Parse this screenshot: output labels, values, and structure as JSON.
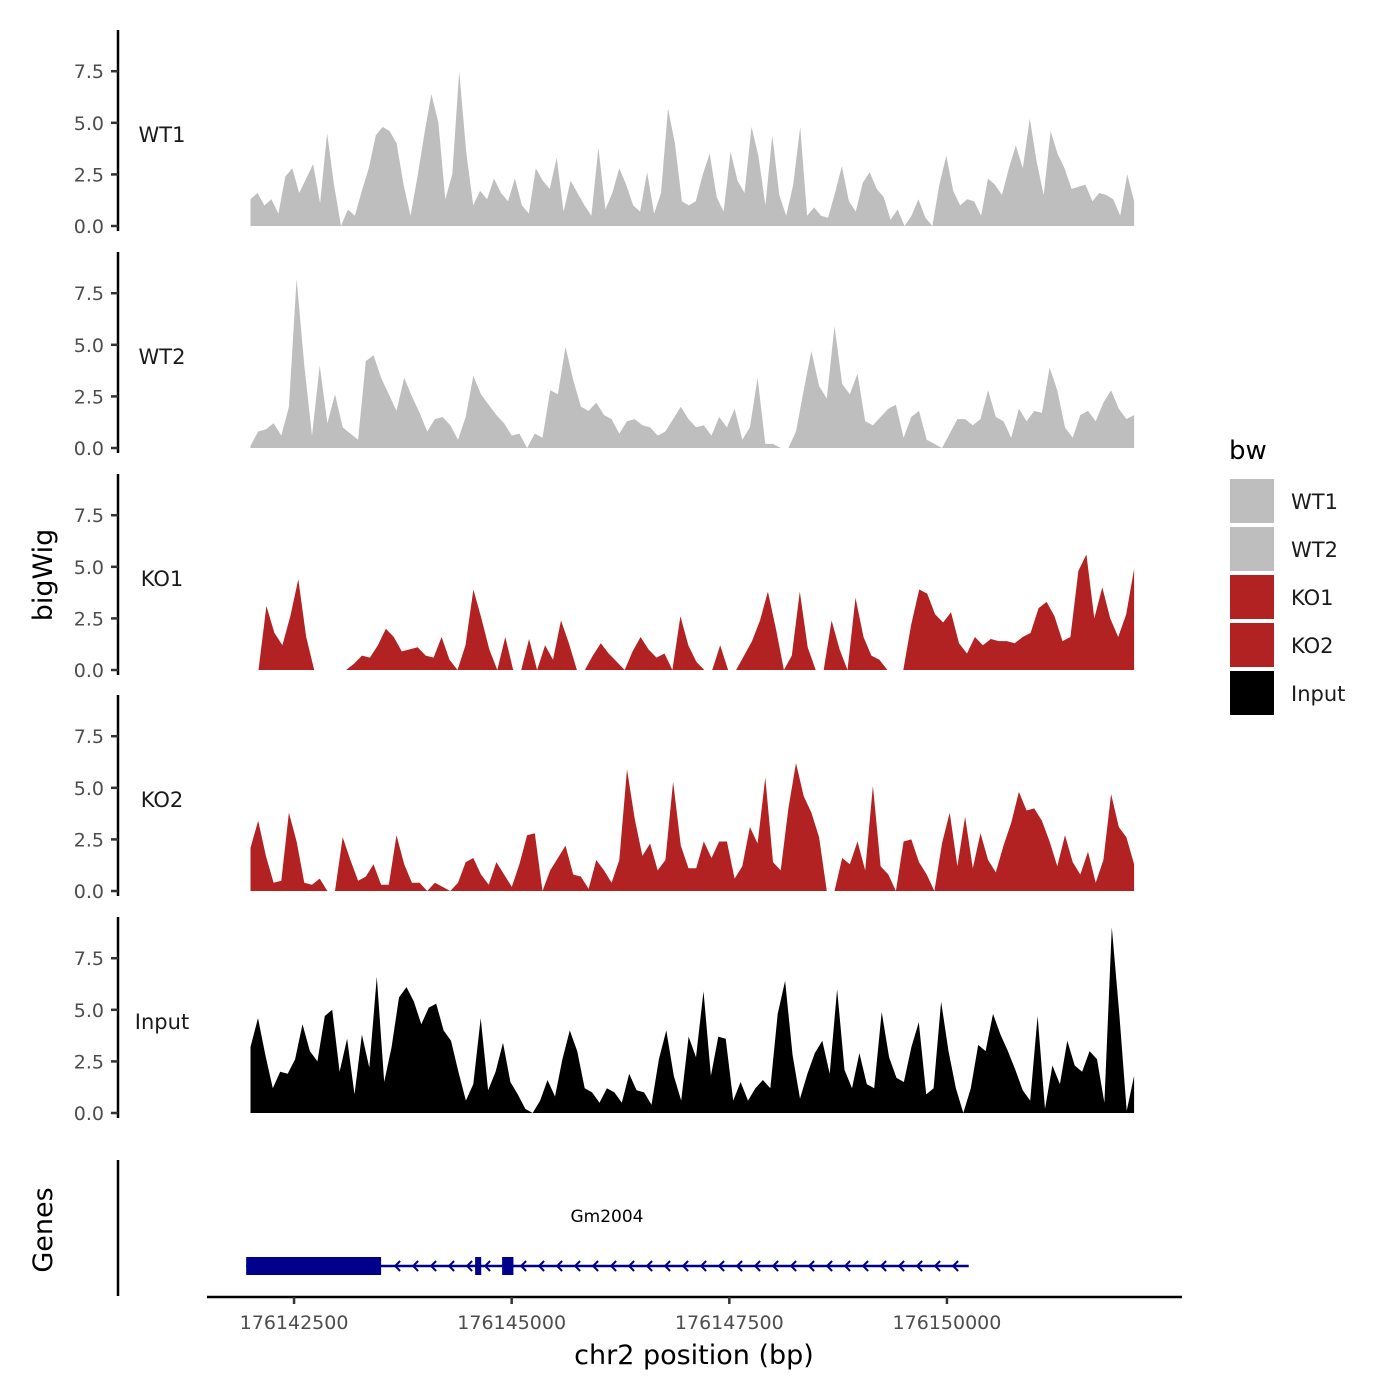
{
  "chart_data": {
    "type": "area",
    "ylabel": "bigWig",
    "xlabel": "chr2 position (bp)",
    "y_ticks": [
      "0.0",
      "2.5",
      "5.0",
      "7.5"
    ],
    "ylim": [
      0,
      9.4
    ],
    "xlim": [
      176141500,
      176152700
    ],
    "x_ticks": [
      {
        "value": 176142500,
        "label": "176142500"
      },
      {
        "value": 176145000,
        "label": "176145000"
      },
      {
        "value": 176147500,
        "label": "176147500"
      },
      {
        "value": 176150000,
        "label": "176150000"
      }
    ],
    "data_x_range": [
      176142000,
      176152150
    ],
    "legend": {
      "title": "bw",
      "position": "right",
      "entries": [
        {
          "label": "WT1",
          "color": "#bebebe"
        },
        {
          "label": "WT2",
          "color": "#bebebe"
        },
        {
          "label": "KO1",
          "color": "#b22222"
        },
        {
          "label": "KO2",
          "color": "#b22222"
        },
        {
          "label": "Input",
          "color": "#000000"
        }
      ]
    },
    "series": [
      {
        "name": "WT1",
        "color": "#bebebe",
        "values": [
          1.3,
          1.6,
          1.0,
          1.3,
          0.6,
          2.4,
          2.8,
          1.6,
          2.3,
          3.0,
          1.1,
          4.5,
          2.0,
          0.0,
          0.8,
          0.5,
          1.7,
          2.8,
          4.4,
          4.8,
          4.6,
          4.0,
          2.0,
          0.5,
          2.4,
          4.5,
          6.4,
          5.0,
          1.3,
          2.5,
          7.5,
          3.6,
          1.0,
          1.7,
          1.3,
          2.3,
          1.6,
          1.2,
          2.3,
          1.0,
          0.6,
          2.8,
          2.2,
          1.8,
          3.3,
          0.7,
          2.2,
          1.6,
          1.0,
          0.5,
          3.8,
          0.8,
          1.6,
          2.8,
          2.0,
          1.0,
          0.7,
          2.6,
          0.6,
          1.6,
          5.7,
          4.0,
          1.2,
          1.0,
          1.2,
          2.5,
          3.5,
          1.4,
          0.7,
          3.6,
          2.2,
          1.6,
          4.8,
          3.4,
          1.0,
          4.4,
          1.5,
          0.5,
          2.0,
          4.8,
          0.5,
          0.9,
          0.5,
          0.4,
          1.6,
          2.9,
          1.2,
          0.7,
          2.1,
          2.6,
          1.8,
          1.4,
          0.3,
          0.8,
          0.0,
          0.5,
          1.3,
          0.4,
          0.0,
          2.0,
          3.4,
          1.7,
          1.0,
          1.3,
          1.2,
          0.5,
          2.3,
          2.0,
          1.5,
          2.8,
          3.9,
          2.8,
          5.2,
          3.1,
          1.5,
          4.6,
          3.5,
          2.8,
          1.8,
          1.9,
          2.0,
          1.2,
          1.6,
          1.5,
          1.3,
          0.5,
          2.5,
          1.2
        ]
      },
      {
        "name": "WT2",
        "color": "#bebebe",
        "values": [
          0.1,
          0.8,
          0.9,
          1.2,
          0.6,
          2.0,
          8.2,
          4.0,
          0.6,
          4.0,
          1.2,
          2.6,
          1.0,
          0.7,
          0.4,
          4.2,
          4.5,
          3.4,
          2.6,
          1.8,
          3.4,
          2.5,
          1.7,
          0.8,
          1.4,
          1.5,
          1.1,
          0.4,
          1.5,
          3.5,
          2.6,
          2.1,
          1.6,
          1.2,
          0.6,
          0.7,
          0.0,
          0.7,
          0.5,
          2.8,
          2.6,
          4.9,
          3.3,
          2.0,
          1.8,
          2.2,
          1.6,
          1.4,
          0.7,
          1.3,
          1.4,
          1.1,
          1.0,
          0.6,
          0.8,
          1.4,
          2.0,
          1.4,
          1.0,
          1.1,
          0.6,
          1.5,
          1.0,
          1.9,
          0.4,
          1.0,
          3.4,
          0.2,
          0.2,
          0.0,
          0.0,
          0.8,
          2.8,
          4.7,
          3.0,
          2.4,
          5.9,
          3.1,
          2.6,
          3.6,
          1.3,
          1.1,
          1.5,
          1.9,
          2.1,
          0.5,
          1.5,
          1.8,
          0.4,
          0.2,
          0.0,
          0.7,
          1.4,
          1.4,
          1.1,
          1.4,
          2.8,
          1.5,
          1.3,
          0.5,
          1.9,
          1.3,
          1.8,
          1.7,
          3.9,
          2.8,
          1.0,
          0.5,
          1.6,
          1.8,
          1.3,
          2.2,
          2.8,
          1.9,
          1.4,
          1.6
        ]
      },
      {
        "name": "KO1",
        "color": "#b22222",
        "values": [
          0.0,
          0.0,
          3.1,
          1.8,
          1.2,
          2.6,
          4.4,
          1.6,
          0.0,
          0.0,
          0.0,
          0.0,
          0.0,
          0.3,
          0.7,
          0.6,
          1.2,
          2.0,
          1.6,
          0.9,
          1.0,
          1.1,
          0.7,
          0.6,
          1.6,
          0.5,
          0.0,
          1.2,
          3.9,
          2.5,
          1.0,
          0.0,
          1.6,
          0.0,
          0.0,
          1.5,
          0.0,
          1.2,
          0.5,
          2.4,
          1.3,
          0.0,
          0.0,
          0.7,
          1.3,
          0.8,
          0.4,
          0.0,
          0.9,
          1.6,
          1.0,
          0.6,
          0.8,
          0.0,
          2.6,
          1.2,
          0.4,
          0.0,
          0.0,
          1.2,
          0.0,
          0.0,
          0.7,
          1.4,
          2.4,
          3.8,
          2.0,
          0.0,
          0.7,
          3.8,
          1.1,
          0.0,
          0.0,
          2.4,
          1.0,
          0.0,
          3.5,
          1.6,
          0.7,
          0.5,
          0.0,
          0.0,
          0.0,
          2.2,
          3.9,
          3.7,
          2.7,
          2.3,
          2.8,
          1.3,
          0.8,
          1.6,
          1.2,
          1.5,
          1.4,
          1.4,
          1.3,
          1.6,
          1.8,
          3.0,
          3.3,
          2.6,
          1.4,
          1.6,
          4.8,
          5.6,
          2.5,
          4.0,
          2.5,
          1.6,
          2.7,
          4.9
        ]
      },
      {
        "name": "KO2",
        "color": "#b22222",
        "values": [
          2.1,
          3.4,
          1.7,
          0.4,
          0.5,
          3.8,
          2.4,
          0.4,
          0.3,
          0.6,
          0.0,
          0.0,
          2.6,
          1.5,
          0.5,
          0.7,
          1.3,
          0.3,
          0.3,
          2.7,
          1.3,
          0.4,
          0.4,
          0.0,
          0.4,
          0.2,
          0.0,
          0.4,
          1.4,
          1.6,
          0.8,
          0.3,
          1.4,
          0.8,
          0.2,
          1.3,
          2.7,
          2.8,
          0.0,
          1.0,
          1.6,
          2.2,
          0.8,
          0.7,
          0.1,
          1.5,
          1.0,
          0.4,
          1.5,
          5.9,
          3.5,
          1.7,
          2.3,
          1.0,
          1.5,
          5.3,
          2.2,
          1.1,
          1.1,
          2.4,
          1.6,
          2.4,
          2.4,
          0.6,
          1.2,
          3.1,
          2.3,
          5.5,
          1.4,
          1.0,
          4.0,
          6.2,
          4.6,
          3.8,
          2.6,
          0.0,
          0.0,
          1.6,
          1.3,
          2.4,
          1.0,
          5.1,
          1.2,
          0.8,
          0.0,
          2.4,
          2.5,
          1.4,
          0.8,
          0.0,
          2.3,
          3.8,
          1.2,
          3.6,
          1.1,
          2.8,
          1.5,
          0.9,
          2.2,
          3.3,
          4.8,
          3.9,
          4.0,
          3.4,
          2.4,
          1.2,
          2.7,
          1.4,
          0.8,
          1.9,
          0.4,
          1.5,
          4.7,
          3.1,
          2.6,
          1.3
        ]
      },
      {
        "name": "Input",
        "color": "#000000",
        "values": [
          3.2,
          4.6,
          2.8,
          1.2,
          2.0,
          1.9,
          2.6,
          4.3,
          3.0,
          2.5,
          4.7,
          5.0,
          2.0,
          3.6,
          0.9,
          3.8,
          2.2,
          6.6,
          1.5,
          3.2,
          5.6,
          6.1,
          5.4,
          4.3,
          5.1,
          5.3,
          4.0,
          3.5,
          2.0,
          0.6,
          1.4,
          4.6,
          1.1,
          2.0,
          3.4,
          1.5,
          0.9,
          0.2,
          0.0,
          0.6,
          1.6,
          0.8,
          2.6,
          4.0,
          3.0,
          1.2,
          1.0,
          0.5,
          1.2,
          1.0,
          0.5,
          1.9,
          1.1,
          1.0,
          0.4,
          2.6,
          4.0,
          1.8,
          0.6,
          3.7,
          2.7,
          5.9,
          1.8,
          3.7,
          3.6,
          0.6,
          1.5,
          0.6,
          1.2,
          1.6,
          1.2,
          4.8,
          6.4,
          2.8,
          0.7,
          1.9,
          2.9,
          3.5,
          1.9,
          6.0,
          2.1,
          1.2,
          2.9,
          1.4,
          1.2,
          4.9,
          2.7,
          1.7,
          1.5,
          3.2,
          4.4,
          0.9,
          1.2,
          5.4,
          3.0,
          1.2,
          0.0,
          1.2,
          3.3,
          3.0,
          4.8,
          3.8,
          3.0,
          2.1,
          1.1,
          0.6,
          4.7,
          0.2,
          2.3,
          1.4,
          3.5,
          2.3,
          2.0,
          3.0,
          2.6,
          0.5,
          9.0,
          4.8,
          0.1,
          1.8
        ]
      }
    ],
    "genes_track": {
      "label": "Genes",
      "gene_name": "Gm2004",
      "strand": "-",
      "color": "#00008b",
      "gene_start": 176141950,
      "gene_end": 176150250,
      "exons": [
        {
          "start": 176141950,
          "end": 176143500,
          "type": "thick"
        },
        {
          "start": 176144580,
          "end": 176144650,
          "type": "small"
        },
        {
          "start": 176144890,
          "end": 176145020,
          "type": "small"
        }
      ]
    }
  }
}
